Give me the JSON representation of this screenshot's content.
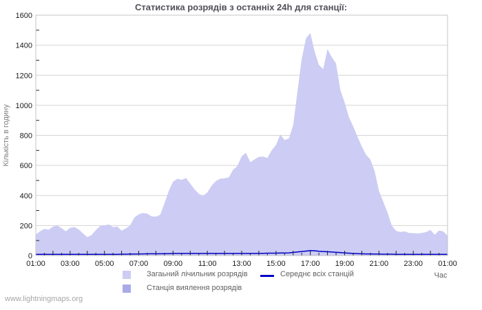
{
  "watermark": "www.lightningmaps.org",
  "chart_data": {
    "type": "area",
    "title": "Статистика розрядів з останніх 24h для станції:",
    "xlabel": "Час",
    "ylabel": "Кількість в годину",
    "ylim": [
      0,
      1600
    ],
    "y_ticks": [
      0,
      200,
      400,
      600,
      800,
      1000,
      1200,
      1400,
      1600
    ],
    "y_minor_step": 100,
    "grid": "horizontal",
    "legend_position": "bottom",
    "x_start": "01:00",
    "x_step_minutes": 15,
    "x_points": 97,
    "x_minor_tick_minutes": 30,
    "x_tick_labels": [
      "01:00",
      "03:00",
      "05:00",
      "07:00",
      "09:00",
      "11:00",
      "13:00",
      "15:00",
      "17:00",
      "19:00",
      "21:00",
      "23:00",
      "01:00"
    ],
    "series": [
      {
        "name": "Загаьний лічильник розрядів",
        "type": "area",
        "color": "#ccccf4",
        "values": [
          140,
          162,
          178,
          172,
          193,
          200,
          183,
          162,
          184,
          190,
          174,
          148,
          123,
          136,
          170,
          196,
          201,
          207,
          189,
          193,
          166,
          181,
          201,
          254,
          275,
          283,
          279,
          261,
          259,
          271,
          348,
          430,
          492,
          511,
          504,
          516,
          479,
          441,
          411,
          397,
          421,
          466,
          497,
          511,
          514,
          521,
          571,
          596,
          661,
          684,
          621,
          641,
          657,
          659,
          649,
          701,
          736,
          806,
          769,
          779,
          868,
          1092,
          1309,
          1446,
          1481,
          1359,
          1269,
          1241,
          1374,
          1321,
          1279,
          1101,
          1019,
          921,
          859,
          791,
          726,
          671,
          639,
          561,
          431,
          359,
          286,
          199,
          164,
          157,
          161,
          151,
          149,
          147,
          151,
          156,
          171,
          139,
          166,
          161,
          131
        ]
      },
      {
        "name": "Станція виялення розрядів",
        "type": "area",
        "color": "#aaaae8",
        "values": [
          0,
          0,
          0,
          0,
          0,
          0,
          0,
          0,
          0,
          0,
          0,
          0,
          0,
          0,
          0,
          0,
          0,
          0,
          0,
          0,
          0,
          0,
          0,
          0,
          0,
          0,
          0,
          0,
          0,
          0,
          0,
          0,
          0,
          0,
          0,
          0,
          0,
          0,
          0,
          0,
          0,
          0,
          0,
          0,
          0,
          0,
          0,
          0,
          0,
          0,
          0,
          0,
          0,
          0,
          0,
          0,
          0,
          0,
          0,
          0,
          0,
          0,
          0,
          0,
          0,
          0,
          0,
          0,
          0,
          0,
          0,
          0,
          0,
          0,
          0,
          0,
          0,
          0,
          0,
          0,
          0,
          0,
          0,
          0,
          0,
          0,
          0,
          0,
          0,
          0,
          0,
          0,
          0,
          0,
          0,
          0,
          0
        ]
      },
      {
        "name": "Середнє всіх станцій",
        "type": "line",
        "color": "#0000c8",
        "values": [
          8,
          8,
          8,
          8,
          8,
          8,
          8,
          8,
          8,
          8,
          8,
          8,
          8,
          8,
          8,
          8,
          8,
          8,
          8,
          8,
          9,
          9,
          10,
          10,
          11,
          11,
          12,
          12,
          12,
          12,
          13,
          13,
          14,
          14,
          14,
          14,
          14,
          14,
          14,
          14,
          14,
          14,
          14,
          14,
          14,
          14,
          14,
          14,
          14,
          14,
          14,
          14,
          15,
          15,
          16,
          16,
          16,
          17,
          17,
          18,
          21,
          24,
          27,
          30,
          33,
          32,
          29,
          27,
          25,
          24,
          22,
          20,
          18,
          16,
          14,
          13,
          12,
          11,
          11,
          10,
          10,
          9,
          9,
          9,
          8,
          8,
          8,
          8,
          8,
          8,
          8,
          8,
          8,
          8,
          8,
          8,
          8
        ]
      }
    ],
    "colors": {
      "background": "#ffffff",
      "grid": "#d4d4d4",
      "border": "#c6c6c6",
      "tick_text": "#1a1a1a",
      "axis_title": "#808080",
      "title_text": "#50505a",
      "legend_text": "#606060",
      "watermark": "#a6a6a6",
      "tick_mark": "#222222"
    }
  }
}
